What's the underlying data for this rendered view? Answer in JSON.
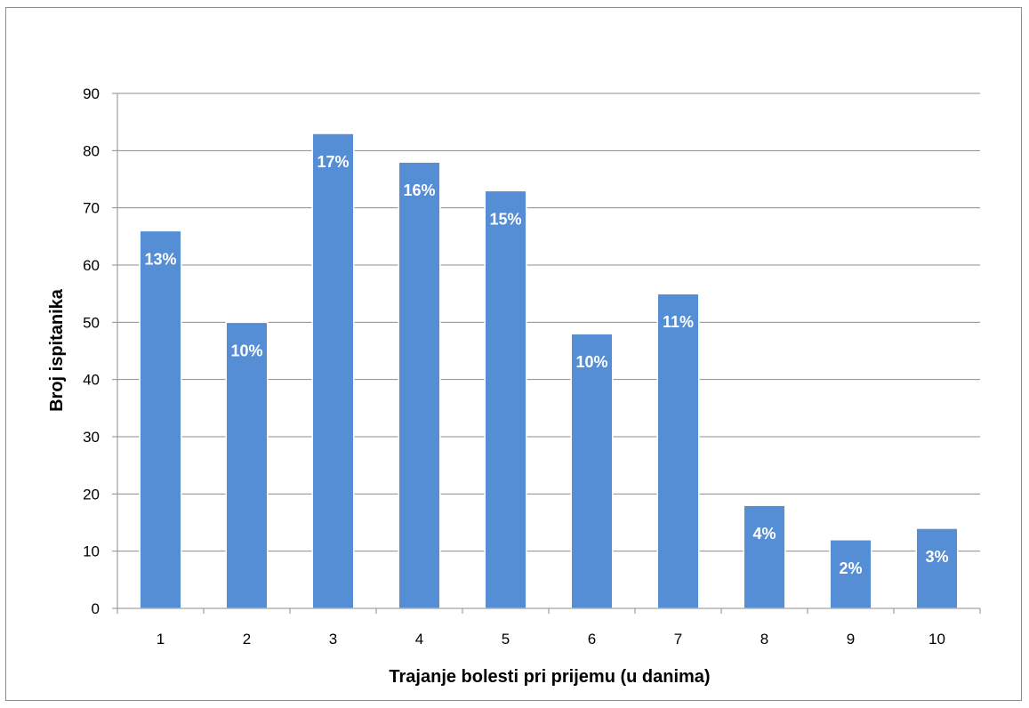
{
  "chart_data": {
    "type": "bar",
    "title": "",
    "xlabel": "Trajanje bolesti pri prijemu (u danima)",
    "ylabel": "Broj ispitanika",
    "categories": [
      "1",
      "2",
      "3",
      "4",
      "5",
      "6",
      "7",
      "8",
      "9",
      "10"
    ],
    "values": [
      66,
      50,
      83,
      78,
      73,
      48,
      55,
      18,
      12,
      14
    ],
    "data_labels": [
      "13%",
      "10%",
      "17%",
      "16%",
      "15%",
      "10%",
      "11%",
      "4%",
      "2%",
      "3%"
    ],
    "ylim": [
      0,
      90
    ],
    "yticks": [
      0,
      10,
      20,
      30,
      40,
      50,
      60,
      70,
      80,
      90
    ],
    "grid": true,
    "legend": "none",
    "colors": {
      "bar": "#558ed5",
      "bar_edge": "#ffffff",
      "grid": "#8c8c8c",
      "axis": "#8c8c8c"
    }
  }
}
